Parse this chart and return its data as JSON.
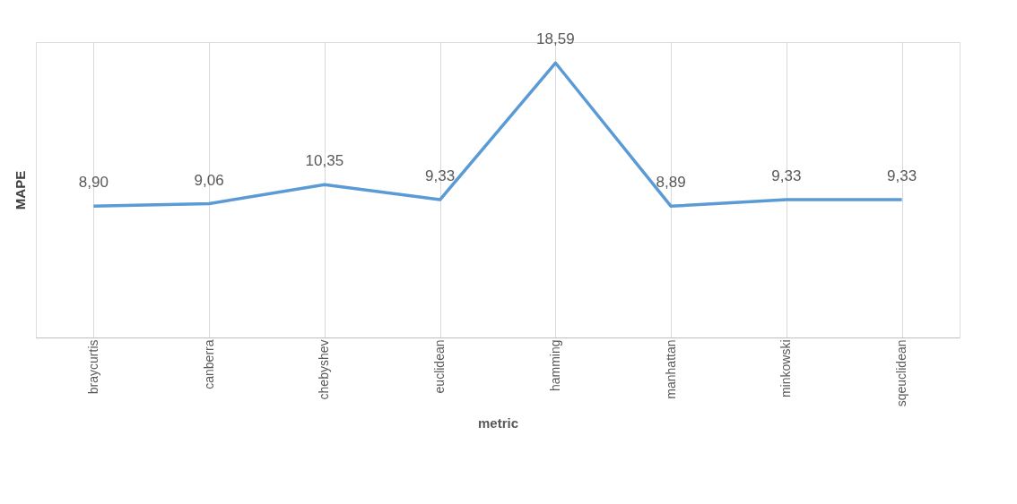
{
  "chart_data": {
    "type": "line",
    "xlabel": "metric",
    "ylabel": "MAPE",
    "categories": [
      "braycurtis",
      "canberra",
      "chebyshev",
      "euclidean",
      "hamming",
      "manhattan",
      "minkowski",
      "sqeuclidean"
    ],
    "series": [
      {
        "color": "#5b9bd5",
        "values": [
          8.9,
          9.06,
          10.35,
          9.33,
          18.59,
          8.89,
          9.33,
          9.33
        ],
        "value_labels": [
          "8,90",
          "9,06",
          "10,35",
          "9,33",
          "18,59",
          "8,89",
          "9,33",
          "9,33"
        ]
      }
    ],
    "ylim": [
      0,
      20
    ],
    "tick_labels": "x",
    "grid": "x",
    "legend": false,
    "marker": "none",
    "line_style": "solid"
  }
}
